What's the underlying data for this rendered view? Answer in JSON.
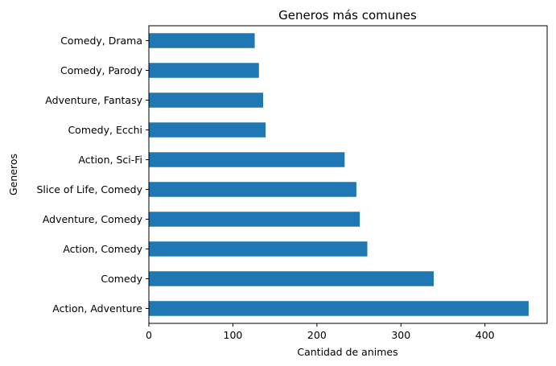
{
  "chart_data": {
    "type": "bar",
    "orientation": "horizontal",
    "title": "Generos más comunes",
    "xlabel": "Cantidad de animes",
    "ylabel": "Generos",
    "categories": [
      "Action, Adventure",
      "Comedy",
      "Action, Comedy",
      "Adventure, Comedy",
      "Slice of Life, Comedy",
      "Action, Sci-Fi",
      "Comedy, Ecchi",
      "Adventure, Fantasy",
      "Comedy, Parody",
      "Comedy, Drama"
    ],
    "values": [
      452,
      339,
      260,
      251,
      247,
      233,
      139,
      136,
      131,
      126
    ],
    "xlim": [
      0,
      474
    ],
    "xticks": [
      0,
      100,
      200,
      300,
      400
    ],
    "grid": false,
    "bar_color": "#1f77b4"
  }
}
